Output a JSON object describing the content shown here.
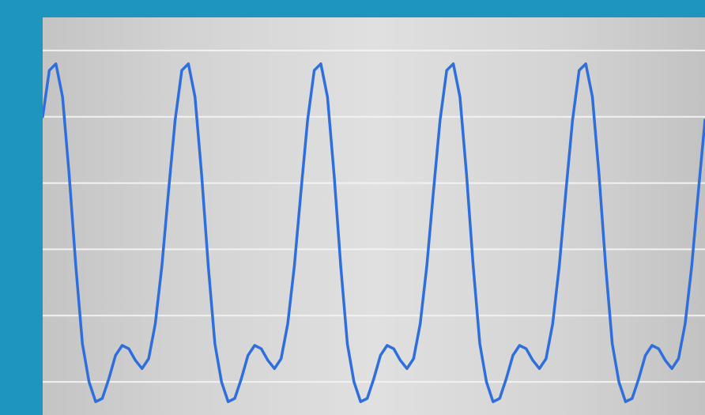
{
  "chart_data": {
    "type": "line",
    "title": "",
    "xlabel": "",
    "ylabel": "",
    "xlim": [
      0,
      3
    ],
    "ylim": [
      -1.2,
      1.2
    ],
    "grid": true,
    "grid_axis": "y",
    "yticks": [
      -1.0,
      -0.6,
      -0.2,
      0.2,
      0.6,
      1.0
    ],
    "series": [
      {
        "color": "#2f6fdc",
        "x": [
          0.0,
          0.03,
          0.06,
          0.09,
          0.12,
          0.15,
          0.18,
          0.21,
          0.24,
          0.27,
          0.3,
          0.33,
          0.36,
          0.39,
          0.42,
          0.45,
          0.48,
          0.51,
          0.54,
          0.57,
          0.6,
          0.63,
          0.66,
          0.69,
          0.72,
          0.75,
          0.78,
          0.81,
          0.84,
          0.87,
          0.9,
          0.93,
          0.96,
          0.99,
          1.02,
          1.05,
          1.08,
          1.11,
          1.14,
          1.17,
          1.2,
          1.23,
          1.26,
          1.29,
          1.32,
          1.35,
          1.38,
          1.41,
          1.44,
          1.47,
          1.5,
          1.53,
          1.56,
          1.59,
          1.62,
          1.65,
          1.68,
          1.71,
          1.74,
          1.77,
          1.8,
          1.83,
          1.86,
          1.89,
          1.92,
          1.95,
          1.98,
          2.01,
          2.04,
          2.07,
          2.1,
          2.13,
          2.16,
          2.19,
          2.22,
          2.25,
          2.28,
          2.31,
          2.34,
          2.37,
          2.4,
          2.43,
          2.46,
          2.49,
          2.52,
          2.55,
          2.58,
          2.61,
          2.64,
          2.67,
          2.7,
          2.73,
          2.76,
          2.79,
          2.82,
          2.85,
          2.88,
          2.91,
          2.94,
          2.97,
          3.0
        ],
        "y": [
          0.6,
          0.88,
          0.92,
          0.72,
          0.25,
          -0.3,
          -0.77,
          -1.0,
          -1.12,
          -1.1,
          -0.98,
          -0.84,
          -0.78,
          -0.8,
          -0.87,
          -0.92,
          -0.86,
          -0.65,
          -0.3,
          0.15,
          0.58,
          0.88,
          0.92,
          0.72,
          0.25,
          -0.3,
          -0.77,
          -1.0,
          -1.12,
          -1.1,
          -0.98,
          -0.84,
          -0.78,
          -0.8,
          -0.87,
          -0.92,
          -0.86,
          -0.65,
          -0.3,
          0.15,
          0.58,
          0.88,
          0.92,
          0.72,
          0.25,
          -0.3,
          -0.77,
          -1.0,
          -1.12,
          -1.1,
          -0.98,
          -0.84,
          -0.78,
          -0.8,
          -0.87,
          -0.92,
          -0.86,
          -0.65,
          -0.3,
          0.15,
          0.58,
          0.88,
          0.92,
          0.72,
          0.25,
          -0.3,
          -0.77,
          -1.0,
          -1.12,
          -1.1,
          -0.98,
          -0.84,
          -0.78,
          -0.8,
          -0.87,
          -0.92,
          -0.86,
          -0.65,
          -0.3,
          0.15,
          0.58,
          0.88,
          0.92,
          0.72,
          0.25,
          -0.3,
          -0.77,
          -1.0,
          -1.12,
          -1.1,
          -0.98,
          -0.84,
          -0.78,
          -0.8,
          -0.87,
          -0.92,
          -0.86,
          -0.65,
          -0.3,
          0.15,
          0.58
        ]
      }
    ]
  },
  "colors": {
    "frame": "#1e95bd",
    "gridline": "#f2f2f2",
    "line": "#2f6fdc"
  }
}
